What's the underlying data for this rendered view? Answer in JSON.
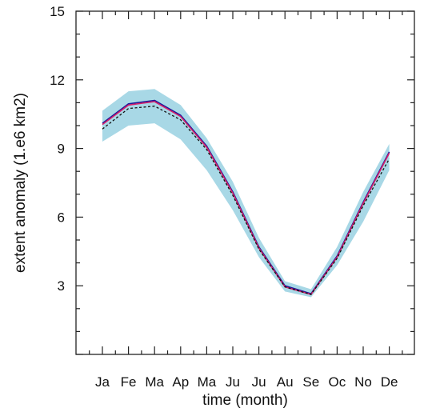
{
  "chart_data": {
    "type": "line",
    "title": "",
    "ylabel": "extent anomaly (1.e6 km2)",
    "xlabel": "time (month)",
    "categories": [
      "Ja",
      "Fe",
      "Ma",
      "Ap",
      "Ma",
      "Ju",
      "Ju",
      "Au",
      "Se",
      "Oc",
      "No",
      "De"
    ],
    "ylim": [
      0,
      15
    ],
    "yticks": [
      3,
      6,
      9,
      12,
      15
    ],
    "band": {
      "upper": [
        10.65,
        11.5,
        11.6,
        10.9,
        9.45,
        7.55,
        5.1,
        3.2,
        2.85,
        4.7,
        7.1,
        9.2
      ],
      "lower": [
        9.3,
        10.0,
        10.1,
        9.4,
        8.05,
        6.3,
        4.25,
        2.75,
        2.5,
        3.9,
        5.8,
        8.05
      ]
    },
    "series": [
      {
        "values": [
          10.1,
          10.95,
          11.1,
          10.45,
          9.1,
          7.1,
          4.7,
          3.0,
          2.65,
          4.3,
          6.65,
          8.85
        ]
      },
      {
        "values": [
          10.05,
          10.9,
          11.05,
          10.4,
          9.05,
          7.05,
          4.65,
          2.95,
          2.62,
          4.25,
          6.6,
          8.8
        ]
      },
      {
        "values": [
          9.85,
          10.75,
          10.85,
          10.25,
          8.95,
          6.95,
          4.6,
          2.95,
          2.62,
          4.2,
          6.5,
          8.55
        ]
      }
    ],
    "colors": {
      "band": "#a8d8e6",
      "series": [
        "#1a1a9a",
        "#d61f6a",
        "#111111"
      ],
      "axis": "#222222"
    },
    "grid": false
  }
}
